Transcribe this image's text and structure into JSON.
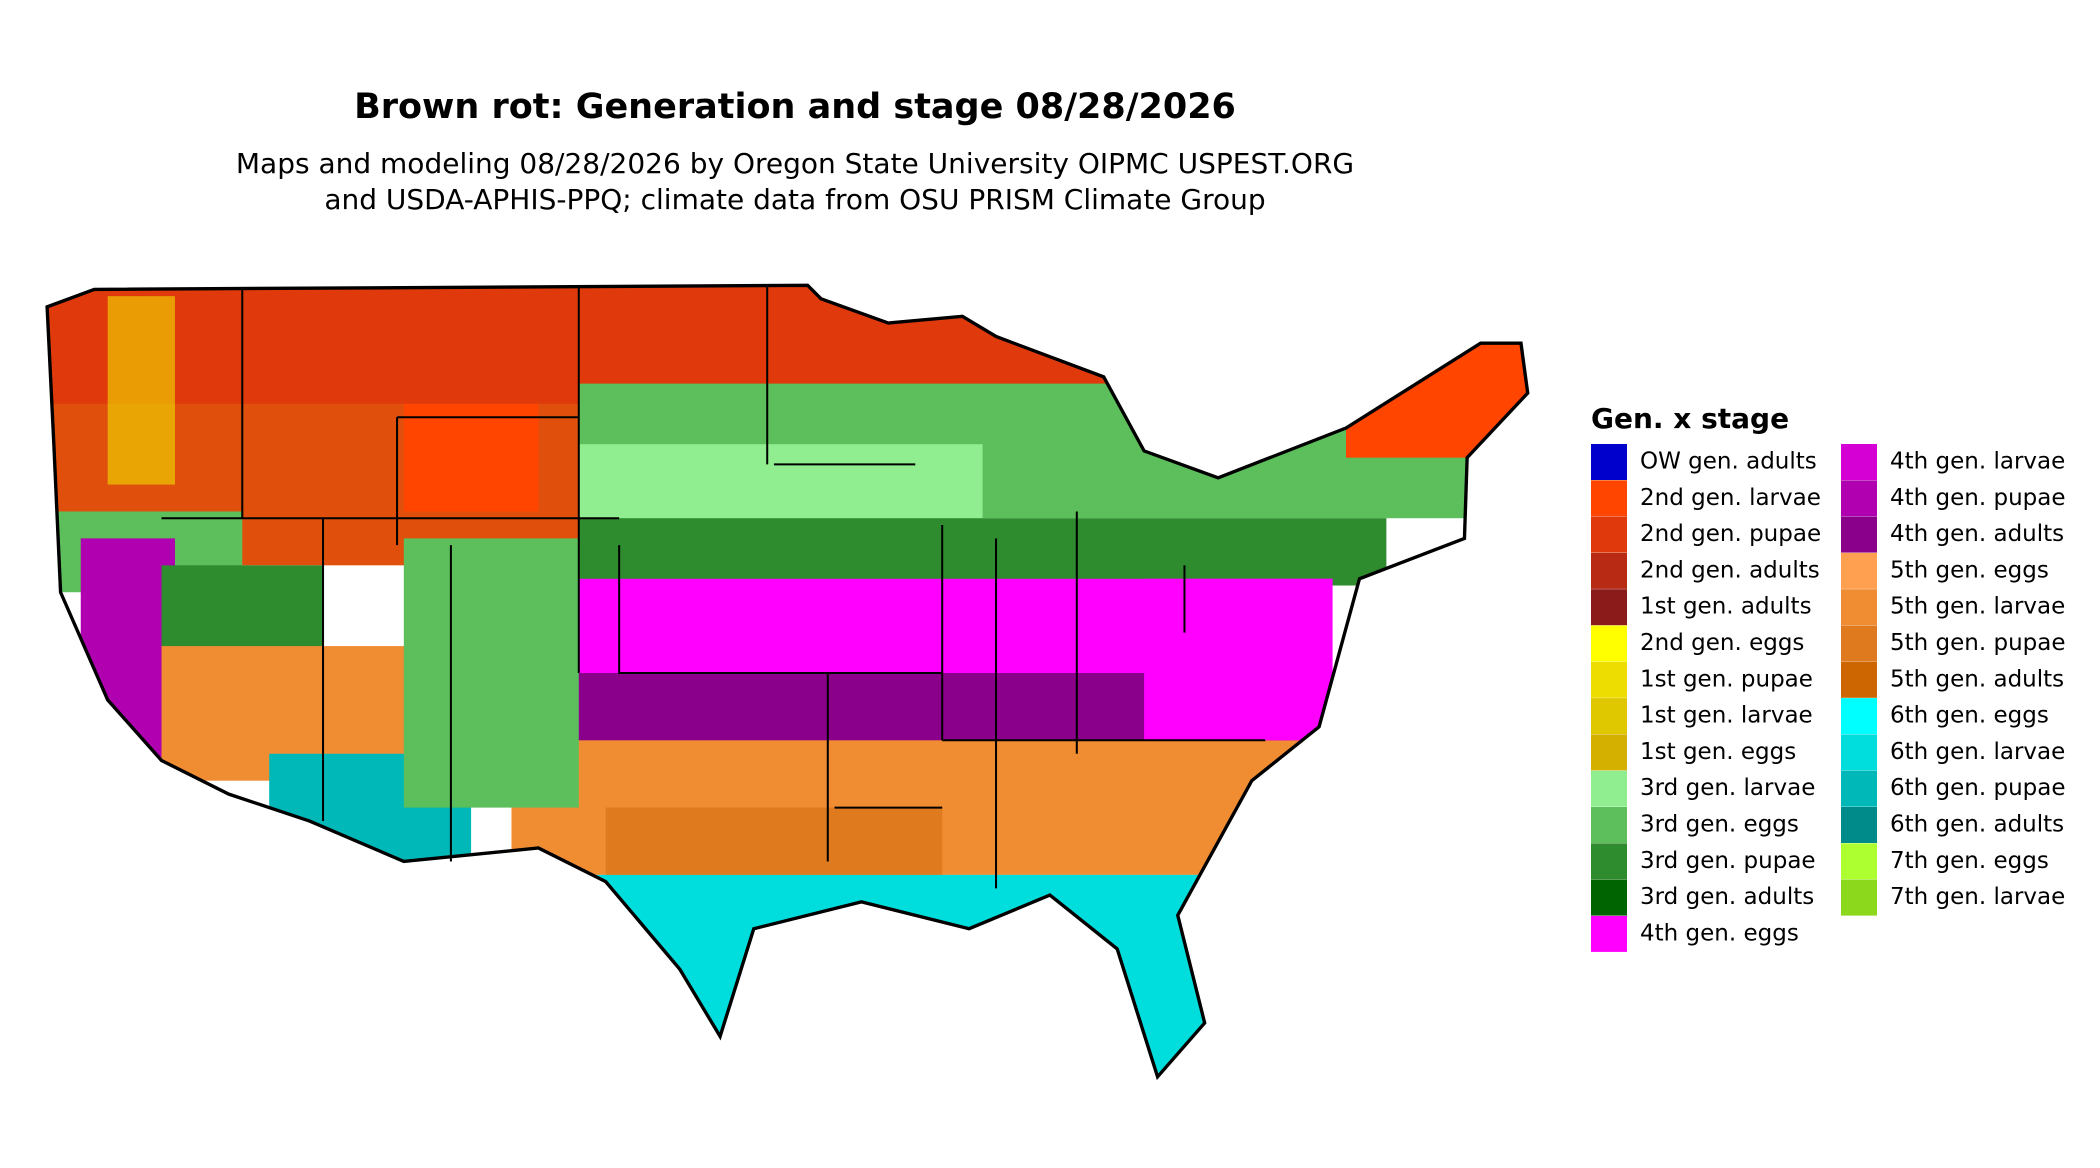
{
  "title": "Brown rot: Generation and stage 08/28/2026",
  "subtitle": [
    "Maps and modeling 08/28/2026 by Oregon State University OIPMC USPEST.ORG",
    "and USDA-APHIS-PPQ; climate data from OSU PRISM Climate Group"
  ],
  "legend": {
    "title": "Gen. x stage",
    "items": [
      {
        "name": "OW gen. adults",
        "color": "#0000cd"
      },
      {
        "name": "2nd gen. larvae",
        "color": "#ff4500"
      },
      {
        "name": "2nd gen. pupae",
        "color": "#e03a0c"
      },
      {
        "name": "2nd gen. adults",
        "color": "#b82a14"
      },
      {
        "name": "1st gen. adults",
        "color": "#8b1a1a"
      },
      {
        "name": "2nd gen. eggs",
        "color": "#ffff00"
      },
      {
        "name": "1st gen. pupae",
        "color": "#eedd00"
      },
      {
        "name": "1st gen. larvae",
        "color": "#e0c800"
      },
      {
        "name": "1st gen. eggs",
        "color": "#d4b000"
      },
      {
        "name": "3rd gen. larvae",
        "color": "#90ee90"
      },
      {
        "name": "3rd gen. eggs",
        "color": "#5cbf5c"
      },
      {
        "name": "3rd gen. pupae",
        "color": "#2e8b2e"
      },
      {
        "name": "3rd gen. adults",
        "color": "#006400"
      },
      {
        "name": "4th gen. eggs",
        "color": "#ff00ff"
      },
      {
        "name": "4th gen. larvae",
        "color": "#d400d4"
      },
      {
        "name": "4th gen. pupae",
        "color": "#b000b0"
      },
      {
        "name": "4th gen. adults",
        "color": "#8b008b"
      },
      {
        "name": "5th gen. eggs",
        "color": "#ffa050"
      },
      {
        "name": "5th gen. larvae",
        "color": "#f08c32"
      },
      {
        "name": "5th gen. pupae",
        "color": "#e07a1e"
      },
      {
        "name": "5th gen. adults",
        "color": "#cd6600"
      },
      {
        "name": "6th gen. eggs",
        "color": "#00ffff"
      },
      {
        "name": "6th gen. larvae",
        "color": "#00dddd"
      },
      {
        "name": "6th gen. pupae",
        "color": "#00b8b8"
      },
      {
        "name": "6th gen. adults",
        "color": "#008b8b"
      },
      {
        "name": "7th gen. eggs",
        "color": "#adff2f"
      },
      {
        "name": "7th gen. larvae",
        "color": "#8cd81c"
      }
    ]
  }
}
